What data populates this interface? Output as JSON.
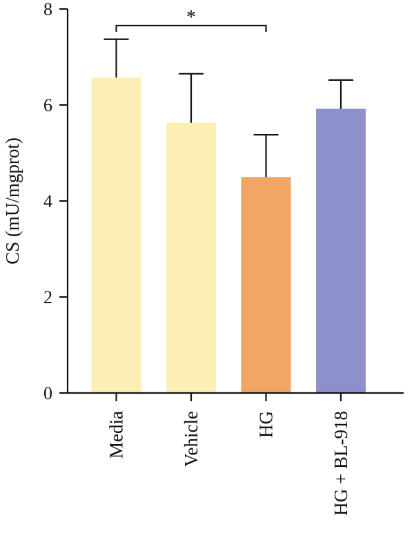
{
  "chart_data": {
    "type": "bar",
    "categories": [
      "Media",
      "Vehicle",
      "HG",
      "HG + BL-918"
    ],
    "values": [
      6.57,
      5.63,
      4.5,
      5.92
    ],
    "errors": [
      0.8,
      1.02,
      0.88,
      0.6
    ],
    "colors": [
      "#FBEFB3",
      "#FBEFB3",
      "#F2A663",
      "#8C91CC"
    ],
    "xlabel": "",
    "ylabel": "CS (mU/mgprot)",
    "ylim": [
      0,
      8
    ],
    "yticks": [
      0,
      2,
      4,
      6,
      8
    ],
    "grid": false,
    "annotations": [
      {
        "type": "significance_bracket",
        "from": "Media",
        "to": "HG",
        "label": "*"
      }
    ]
  }
}
